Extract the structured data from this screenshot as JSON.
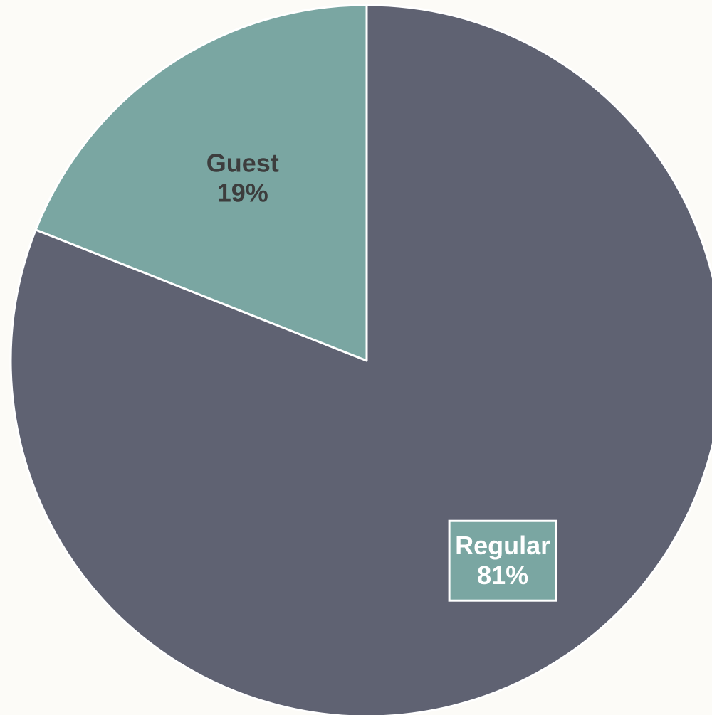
{
  "chart_data": {
    "type": "pie",
    "slices": [
      {
        "label": "Regular",
        "value": 81,
        "value_label": "81%",
        "color": "#5f6272",
        "label_color": "#ffffff",
        "label_box_color": "#7aa6a2"
      },
      {
        "label": "Guest",
        "value": 19,
        "value_label": "19%",
        "color": "#7aa6a2",
        "label_color": "#3d3d3d"
      }
    ],
    "start_angle_deg": 0,
    "direction": "clockwise",
    "slice_border_color": "#ffffff",
    "background": "#fcfbf7"
  }
}
